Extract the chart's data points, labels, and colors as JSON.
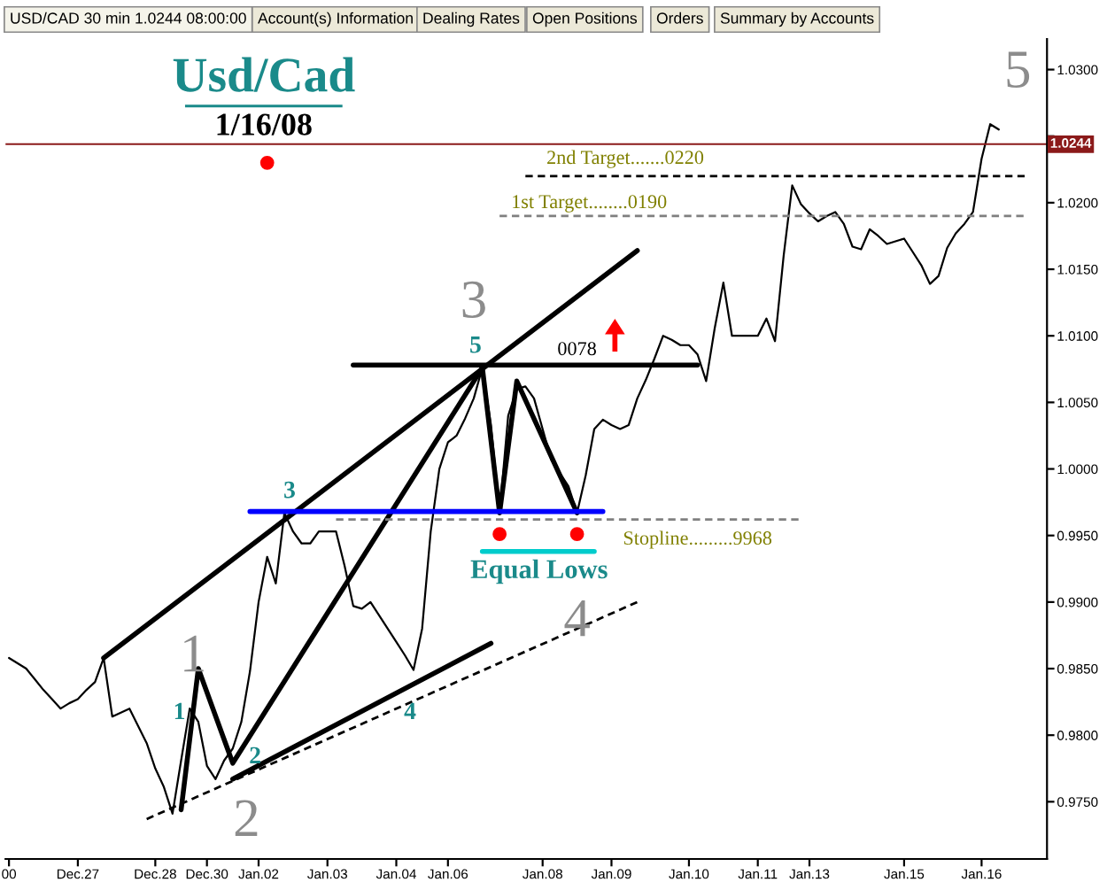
{
  "chart_data": {
    "type": "line",
    "title": "Usd/Cad",
    "subtitle": "1/16/08",
    "categories": [
      "00",
      null,
      null,
      null,
      null,
      null,
      null,
      null,
      "Dec.27",
      null,
      null,
      null,
      null,
      null,
      null,
      null,
      null,
      "Dec.28",
      null,
      null,
      null,
      null,
      null,
      "Dec.30",
      null,
      null,
      null,
      null,
      null,
      "Jan.02",
      null,
      null,
      null,
      null,
      null,
      null,
      null,
      "Jan.03",
      null,
      null,
      null,
      null,
      null,
      null,
      null,
      "Jan.04",
      null,
      null,
      null,
      null,
      null,
      "Jan.06",
      null,
      null,
      null,
      null,
      null,
      null,
      null,
      null,
      null,
      null,
      "Jan.08",
      null,
      null,
      null,
      null,
      null,
      null,
      null,
      "Jan.09",
      null,
      null,
      null,
      null,
      null,
      null,
      null,
      null,
      "Jan.10",
      null,
      null,
      null,
      null,
      null,
      null,
      null,
      "Jan.11",
      null,
      null,
      null,
      null,
      null,
      "Jan.13",
      null,
      null,
      null,
      null,
      null,
      null,
      null,
      null,
      null,
      null,
      "Jan.15",
      null,
      null,
      null,
      null,
      null,
      null,
      null,
      null,
      "Jan.16",
      null,
      null,
      null,
      null,
      null,
      null,
      null
    ],
    "ylim": [
      0.9707,
      1.0323
    ],
    "yticks": [
      {
        "value": 0.975,
        "label": "0.9750"
      },
      {
        "value": 0.98,
        "label": "0.9800"
      },
      {
        "value": 0.985,
        "label": "0.9850"
      },
      {
        "value": 0.99,
        "label": "0.9900"
      },
      {
        "value": 0.995,
        "label": "0.9950"
      },
      {
        "value": 1.0,
        "label": "1.0000"
      },
      {
        "value": 1.005,
        "label": "1.0050"
      },
      {
        "value": 1.01,
        "label": "1.0100"
      },
      {
        "value": 1.015,
        "label": "1.0150"
      },
      {
        "value": 1.02,
        "label": "1.0200"
      },
      {
        "value": 1.025,
        "label": null
      },
      {
        "value": 1.03,
        "label": "1.0300"
      }
    ],
    "ref_lines": [
      {
        "axis": "y",
        "value": 1.0244,
        "label": "1.0244",
        "color": "#8b1a1a"
      }
    ],
    "series": [
      {
        "color": "#000000",
        "values": [
          0.9858,
          0.9854,
          0.985,
          0.9842,
          0.9834,
          0.9827,
          0.982,
          0.9824,
          0.9827,
          0.9834,
          0.984,
          0.9858,
          0.9814,
          0.9817,
          0.982,
          0.9807,
          0.9794,
          0.9775,
          0.9761,
          0.9741,
          0.9781,
          0.982,
          0.981,
          0.9777,
          0.9767,
          0.9781,
          0.979,
          0.981,
          0.9848,
          0.99,
          0.9934,
          0.9914,
          0.9967,
          0.9953,
          0.9944,
          0.9944,
          0.9953,
          0.9953,
          0.9953,
          0.9927,
          0.9897,
          0.9895,
          0.99,
          0.989,
          0.988,
          0.987,
          0.986,
          0.9849,
          0.988,
          0.9953,
          1.0,
          1.002,
          1.0025,
          1.0038,
          1.0053,
          1.0076,
          1.0033,
          0.9967,
          1.004,
          1.006,
          1.0062,
          1.0053,
          1.003,
          1.0007,
          0.9997,
          0.9987,
          0.9967,
          0.9995,
          1.003,
          1.0037,
          1.0033,
          1.003,
          1.0033,
          1.0053,
          1.0067,
          1.0083,
          1.01,
          1.0097,
          1.0093,
          1.0093,
          1.0086,
          1.0066,
          1.0106,
          1.014,
          1.01,
          1.01,
          1.01,
          1.01,
          1.0113,
          1.0096,
          1.016,
          1.0213,
          1.0199,
          1.0192,
          1.0186,
          1.019,
          1.0193,
          1.0184,
          1.0167,
          1.0165,
          1.018,
          1.0175,
          1.0169,
          1.0171,
          1.0173,
          1.0163,
          1.0153,
          1.0139,
          1.0145,
          1.0166,
          1.0177,
          1.0184,
          1.0193,
          1.0233,
          1.0259,
          1.0255,
          null,
          null,
          null,
          null,
          null
        ]
      },
      {
        "type": "line",
        "color": "#000000",
        "line_style": "solid",
        "values": [
          null,
          null,
          null,
          null,
          null,
          null,
          null,
          null,
          null,
          null,
          null,
          0.9858,
          null,
          null,
          null,
          null,
          null,
          null,
          null,
          null,
          null,
          null,
          null,
          null,
          null,
          null,
          null,
          null,
          null,
          null,
          null,
          null,
          null,
          null,
          null,
          null,
          null,
          null,
          null,
          null,
          null,
          null,
          null,
          null,
          null,
          null,
          null,
          null,
          null,
          null,
          null,
          null,
          null,
          null,
          null,
          null,
          null,
          null,
          null,
          null,
          null,
          null,
          null,
          null,
          null,
          null,
          null,
          null,
          null,
          null,
          null,
          null,
          null,
          1.0164,
          null,
          null,
          null,
          null,
          null,
          null,
          null,
          null,
          null,
          null,
          null,
          null,
          null,
          null,
          null,
          null,
          null,
          null,
          null,
          null,
          null,
          null,
          null,
          null,
          null,
          null,
          null,
          null,
          null,
          null,
          null,
          null,
          null,
          null,
          null,
          null,
          null,
          null,
          null,
          null,
          null,
          null,
          null,
          null,
          null,
          null,
          null
        ]
      },
      {
        "type": "line",
        "color": "#000000",
        "line_style": "solid",
        "values": [
          null,
          null,
          null,
          null,
          null,
          null,
          null,
          null,
          null,
          null,
          null,
          null,
          null,
          null,
          null,
          null,
          null,
          null,
          null,
          null,
          null,
          null,
          null,
          null,
          null,
          null,
          0.9767,
          null,
          null,
          null,
          null,
          null,
          null,
          null,
          null,
          null,
          null,
          null,
          null,
          null,
          null,
          null,
          null,
          null,
          null,
          null,
          null,
          null,
          null,
          null,
          null,
          null,
          null,
          null,
          null,
          null,
          0.9869,
          null,
          null,
          null,
          null,
          null,
          null,
          null,
          null,
          null,
          null,
          null,
          null,
          null,
          null,
          null,
          null,
          null,
          null,
          null,
          null,
          null,
          null,
          null,
          null,
          null,
          null,
          null,
          null,
          null,
          null,
          null,
          null,
          null,
          null,
          null,
          null,
          null,
          null,
          null,
          null,
          null,
          null,
          null,
          null,
          null,
          null,
          null,
          null,
          null,
          null,
          null,
          null,
          null,
          null,
          null,
          null,
          null,
          null,
          null,
          null,
          null,
          null,
          null,
          null
        ]
      },
      {
        "type": "line",
        "color": "#000000",
        "line_style": "dashed",
        "values": [
          null,
          null,
          null,
          null,
          null,
          null,
          null,
          null,
          null,
          null,
          null,
          null,
          null,
          null,
          null,
          null,
          0.9737,
          null,
          null,
          null,
          null,
          null,
          null,
          null,
          null,
          null,
          null,
          null,
          null,
          null,
          null,
          null,
          null,
          null,
          null,
          null,
          null,
          null,
          null,
          null,
          null,
          null,
          null,
          null,
          null,
          null,
          null,
          null,
          null,
          null,
          null,
          null,
          null,
          null,
          null,
          null,
          null,
          null,
          null,
          null,
          null,
          null,
          null,
          null,
          null,
          null,
          null,
          null,
          null,
          null,
          null,
          null,
          null,
          0.99,
          null,
          null,
          null,
          null,
          null,
          null,
          null,
          null,
          null,
          null,
          null,
          null,
          null,
          null,
          null,
          null,
          null,
          null,
          null,
          null,
          null,
          null,
          null,
          null,
          null,
          null,
          null,
          null,
          null,
          null,
          null,
          null,
          null,
          null,
          null,
          null,
          null,
          null,
          null,
          null,
          null,
          null,
          null,
          null,
          null,
          null,
          null
        ]
      },
      {
        "type": "line",
        "color": "#000000",
        "line_style": "solid",
        "values": [
          null,
          null,
          null,
          null,
          null,
          null,
          null,
          null,
          null,
          null,
          null,
          null,
          null,
          null,
          null,
          null,
          null,
          null,
          null,
          null,
          0.9744,
          null,
          0.985,
          null,
          null,
          null,
          0.9779,
          null,
          null,
          null,
          null,
          null,
          null,
          null,
          null,
          null,
          null,
          null,
          null,
          null,
          null,
          null,
          null,
          null,
          null,
          null,
          null,
          null,
          null,
          null,
          null,
          null,
          null,
          null,
          null,
          1.0076,
          null,
          0.9967,
          null,
          1.0066,
          null,
          null,
          null,
          null,
          null,
          null,
          0.9967,
          null,
          null,
          null,
          null,
          null,
          null,
          null,
          null,
          null,
          null,
          null,
          null,
          null,
          null,
          null,
          null,
          null,
          null,
          null,
          null,
          null,
          null,
          null,
          null,
          null,
          null,
          null,
          null,
          null,
          null,
          null,
          null,
          null,
          null,
          null,
          null,
          null,
          null,
          null,
          null,
          null,
          null,
          null,
          null,
          null,
          null,
          null,
          null,
          null,
          null,
          null,
          null,
          null,
          null
        ]
      },
      {
        "type": "line",
        "color": "#000000",
        "line_style": "solid",
        "values": [
          null,
          null,
          null,
          null,
          null,
          null,
          null,
          null,
          null,
          null,
          null,
          null,
          null,
          null,
          null,
          null,
          null,
          null,
          null,
          null,
          null,
          null,
          null,
          null,
          null,
          null,
          null,
          null,
          null,
          null,
          null,
          null,
          null,
          null,
          null,
          null,
          null,
          null,
          null,
          null,
          1.0078,
          null,
          null,
          null,
          null,
          null,
          null,
          null,
          null,
          null,
          null,
          null,
          null,
          null,
          null,
          null,
          null,
          null,
          null,
          null,
          null,
          null,
          null,
          null,
          null,
          null,
          null,
          null,
          null,
          null,
          null,
          null,
          null,
          null,
          null,
          null,
          null,
          null,
          null,
          null,
          1.0078,
          null,
          null,
          null,
          null,
          null,
          null,
          null,
          null,
          null,
          null,
          null,
          null,
          null,
          null,
          null,
          null,
          null,
          null,
          null,
          null,
          null,
          null,
          null,
          null,
          null,
          null,
          null,
          null,
          null,
          null,
          null,
          null,
          null,
          null,
          null,
          null,
          null,
          null,
          null,
          null
        ]
      },
      {
        "type": "line",
        "color": "#0000ff",
        "line_style": "solid",
        "values": [
          null,
          null,
          null,
          null,
          null,
          null,
          null,
          null,
          null,
          null,
          null,
          null,
          null,
          null,
          null,
          null,
          null,
          null,
          null,
          null,
          null,
          null,
          null,
          null,
          null,
          null,
          null,
          null,
          0.9968,
          null,
          null,
          null,
          null,
          null,
          null,
          null,
          null,
          null,
          null,
          null,
          null,
          null,
          null,
          null,
          null,
          null,
          null,
          null,
          null,
          null,
          null,
          null,
          null,
          null,
          null,
          null,
          null,
          null,
          null,
          null,
          null,
          null,
          null,
          null,
          null,
          null,
          null,
          null,
          null,
          0.9968,
          null,
          null,
          null,
          null,
          null,
          null,
          null,
          null,
          null,
          null,
          null,
          null,
          null,
          null,
          null,
          null,
          null,
          null,
          null,
          null,
          null,
          null,
          null,
          null,
          null,
          null,
          null,
          null,
          null,
          null,
          null,
          null,
          null,
          null,
          null,
          null,
          null,
          null,
          null,
          null,
          null,
          null,
          null,
          null,
          null,
          null,
          null,
          null,
          null,
          null,
          null
        ]
      },
      {
        "type": "line",
        "color": "#00cccc",
        "line_style": "solid",
        "values": [
          null,
          null,
          null,
          null,
          null,
          null,
          null,
          null,
          null,
          null,
          null,
          null,
          null,
          null,
          null,
          null,
          null,
          null,
          null,
          null,
          null,
          null,
          null,
          null,
          null,
          null,
          null,
          null,
          null,
          null,
          null,
          null,
          null,
          null,
          null,
          null,
          null,
          null,
          null,
          null,
          null,
          null,
          null,
          null,
          null,
          null,
          null,
          null,
          null,
          null,
          null,
          null,
          null,
          null,
          null,
          0.9938,
          null,
          null,
          null,
          null,
          null,
          null,
          null,
          null,
          null,
          null,
          null,
          null,
          0.9938,
          null,
          null,
          null,
          null,
          null,
          null,
          null,
          null,
          null,
          null,
          null,
          null,
          null,
          null,
          null,
          null,
          null,
          null,
          null,
          null,
          null,
          null,
          null,
          null,
          null,
          null,
          null,
          null,
          null,
          null,
          null,
          null,
          null,
          null,
          null,
          null,
          null,
          null,
          null,
          null,
          null,
          null,
          null,
          null,
          null,
          null,
          null,
          null,
          null,
          null,
          null,
          null
        ]
      },
      {
        "type": "line",
        "color": "#000000",
        "line_style": "dashed",
        "values": [
          null,
          null,
          null,
          null,
          null,
          null,
          null,
          null,
          null,
          null,
          null,
          null,
          null,
          null,
          null,
          null,
          null,
          null,
          null,
          null,
          null,
          null,
          null,
          null,
          null,
          null,
          null,
          null,
          null,
          null,
          null,
          null,
          null,
          null,
          null,
          null,
          null,
          null,
          null,
          null,
          null,
          null,
          null,
          null,
          null,
          null,
          null,
          null,
          null,
          null,
          null,
          null,
          null,
          null,
          null,
          null,
          null,
          null,
          null,
          null,
          1.022,
          null,
          null,
          null,
          null,
          null,
          null,
          null,
          null,
          null,
          null,
          null,
          null,
          null,
          null,
          null,
          null,
          null,
          null,
          null,
          null,
          null,
          null,
          null,
          null,
          null,
          null,
          null,
          null,
          null,
          null,
          null,
          null,
          null,
          null,
          null,
          null,
          null,
          null,
          null,
          null,
          null,
          null,
          null,
          null,
          null,
          null,
          null,
          null,
          null,
          null,
          null,
          null,
          null,
          null,
          null,
          null,
          null,
          1.022,
          null,
          null
        ]
      },
      {
        "type": "line",
        "color": "#808080",
        "line_style": "dashed",
        "values": [
          null,
          null,
          null,
          null,
          null,
          null,
          null,
          null,
          null,
          null,
          null,
          null,
          null,
          null,
          null,
          null,
          null,
          null,
          null,
          null,
          null,
          null,
          null,
          null,
          null,
          null,
          null,
          null,
          null,
          null,
          null,
          null,
          null,
          null,
          null,
          null,
          null,
          null,
          null,
          null,
          null,
          null,
          null,
          null,
          null,
          null,
          null,
          null,
          null,
          null,
          null,
          null,
          null,
          null,
          null,
          null,
          null,
          1.019,
          null,
          null,
          null,
          null,
          null,
          null,
          null,
          null,
          null,
          null,
          null,
          null,
          null,
          null,
          null,
          null,
          null,
          null,
          null,
          null,
          null,
          null,
          null,
          null,
          null,
          null,
          null,
          null,
          null,
          null,
          null,
          null,
          null,
          null,
          null,
          null,
          null,
          null,
          null,
          null,
          null,
          null,
          null,
          null,
          null,
          null,
          null,
          null,
          null,
          null,
          null,
          null,
          null,
          null,
          null,
          null,
          null,
          null,
          null,
          null,
          1.019,
          null,
          null
        ]
      },
      {
        "type": "line",
        "color": "#808080",
        "line_style": "dashed",
        "values": [
          null,
          null,
          null,
          null,
          null,
          null,
          null,
          null,
          null,
          null,
          null,
          null,
          null,
          null,
          null,
          null,
          null,
          null,
          null,
          null,
          null,
          null,
          null,
          null,
          null,
          null,
          null,
          null,
          null,
          null,
          null,
          null,
          null,
          null,
          null,
          null,
          null,
          null,
          0.9962,
          null,
          null,
          null,
          null,
          null,
          null,
          null,
          null,
          null,
          null,
          null,
          null,
          null,
          null,
          null,
          null,
          null,
          null,
          null,
          null,
          null,
          null,
          null,
          null,
          null,
          null,
          null,
          null,
          null,
          null,
          null,
          null,
          null,
          null,
          null,
          null,
          null,
          null,
          null,
          null,
          null,
          null,
          null,
          null,
          null,
          null,
          null,
          null,
          null,
          null,
          null,
          null,
          null,
          0.9962,
          null,
          null,
          null,
          null,
          null,
          null,
          null,
          null,
          null,
          null,
          null,
          null,
          null,
          null,
          null,
          null,
          null,
          null,
          null,
          null,
          null,
          null,
          null,
          null,
          null,
          null,
          null,
          null
        ]
      },
      {
        "type": "scatter",
        "color": "#ff0000",
        "marker": "circle",
        "values": [
          null,
          null,
          null,
          null,
          null,
          null,
          null,
          null,
          null,
          null,
          null,
          null,
          null,
          null,
          null,
          null,
          null,
          null,
          null,
          null,
          null,
          null,
          null,
          null,
          null,
          null,
          null,
          null,
          null,
          null,
          1.023,
          null,
          null,
          null,
          null,
          null,
          null,
          null,
          null,
          null,
          null,
          null,
          null,
          null,
          null,
          null,
          null,
          null,
          null,
          null,
          null,
          null,
          null,
          null,
          null,
          null,
          null,
          0.9951,
          null,
          null,
          null,
          null,
          null,
          null,
          null,
          null,
          0.9951,
          null,
          null,
          null,
          null,
          null,
          null,
          null,
          null,
          null,
          null,
          null,
          null,
          null,
          null,
          null,
          null,
          null,
          null,
          null,
          null,
          null,
          null,
          null,
          null,
          null,
          null,
          null,
          null,
          null,
          null,
          null,
          null,
          null,
          null,
          null,
          null,
          null,
          null,
          null,
          null,
          null,
          null,
          null,
          null,
          null,
          null,
          null,
          null,
          null,
          null,
          null,
          null,
          null,
          null
        ]
      }
    ],
    "annotations": [
      "USD/CAD 30 min 1.0244 08:00:00",
      "Account(s) Information",
      "Dealing Rates",
      "Open Positions",
      "Orders",
      "Summary by Accounts",
      "1",
      "2",
      "3",
      "4",
      "5",
      "1",
      "2",
      "3",
      "4",
      "5",
      "0078",
      "2nd Target.......0220",
      "1st Target........0190",
      "Stopline.........9968",
      "Equal Lows"
    ]
  }
}
